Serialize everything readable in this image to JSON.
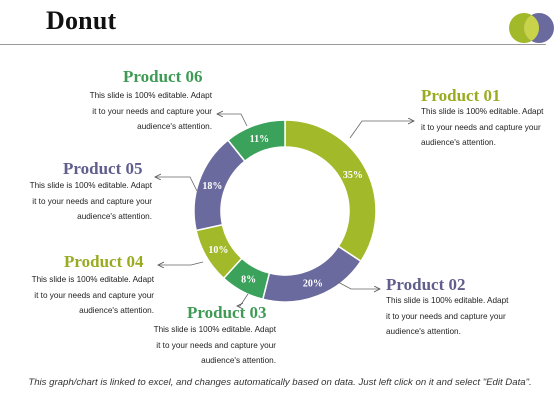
{
  "slide": {
    "title": "Donut",
    "footer": "This graph/chart is linked to excel, and changes automatically based on data. Just left click on it and select \"Edit Data\"."
  },
  "colors": {
    "green_yellow": "#a2b92a",
    "slate": "#6b6a9e",
    "green": "#3aa25a",
    "title_green": "#3f9a55",
    "title_slate": "#5f5e8c",
    "title_olive": "#9aab22"
  },
  "products": [
    {
      "title": "Product 01",
      "lines": [
        "This slide is 100% editable. Adapt",
        "it to your needs and capture your",
        "audience's attention."
      ]
    },
    {
      "title": "Product 02",
      "lines": [
        "This slide is 100% editable. Adapt",
        "it to your needs and capture your",
        "audience's attention."
      ]
    },
    {
      "title": "Product 03",
      "lines": [
        "This slide is 100% editable. Adapt",
        "it to your needs and capture your",
        "audience's attention."
      ]
    },
    {
      "title": "Product 04",
      "lines": [
        "This slide is 100% editable. Adapt",
        "it to your needs and capture your",
        "audience's attention."
      ]
    },
    {
      "title": "Product 05",
      "lines": [
        "This slide is 100% editable. Adapt",
        "it to your needs and capture your",
        "audience's attention."
      ]
    },
    {
      "title": "Product 06",
      "lines": [
        "This slide is 100% editable. Adapt",
        "it to your needs and capture your",
        "audience's attention."
      ]
    }
  ],
  "chart_data": {
    "type": "pie",
    "donut": true,
    "categories": [
      "Product 01",
      "Product 02",
      "Product 03",
      "Product 04",
      "Product 05",
      "Product 06"
    ],
    "values": [
      35,
      20,
      8,
      10,
      18,
      11
    ],
    "data_labels": [
      "35%",
      "20%",
      "8%",
      "10%",
      "18%",
      "11%"
    ],
    "colors": [
      "#a2b92a",
      "#6b6a9e",
      "#3aa25a",
      "#a2b92a",
      "#6b6a9e",
      "#3aa25a"
    ],
    "start": "12 o'clock",
    "direction": "clockwise"
  }
}
